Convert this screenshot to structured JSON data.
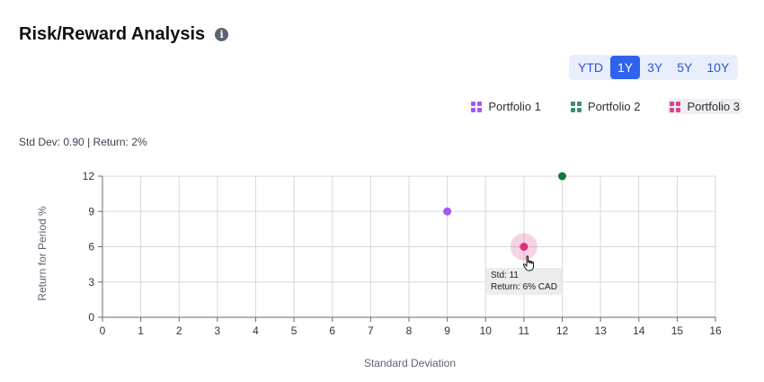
{
  "header": {
    "title": "Risk/Reward Analysis",
    "info_icon": "info-icon"
  },
  "periods": [
    {
      "label": "YTD",
      "active": false
    },
    {
      "label": "1Y",
      "active": true
    },
    {
      "label": "3Y",
      "active": false
    },
    {
      "label": "5Y",
      "active": false
    },
    {
      "label": "10Y",
      "active": false
    }
  ],
  "legend": [
    {
      "label": "Portfolio 1",
      "color": "#a855f7",
      "highlight": false
    },
    {
      "label": "Portfolio 2",
      "color": "#3d8f6b",
      "highlight": false
    },
    {
      "label": "Portfolio 3",
      "color": "#e0408a",
      "highlight": true
    }
  ],
  "stats": {
    "std_dev_label": "Std Dev: 0.90",
    "separator": "|",
    "return_label": "Return: 2%"
  },
  "tooltip": {
    "line1": "Std: 11",
    "line2": "Return: 6% CAD"
  },
  "chart_data": {
    "type": "scatter",
    "xlabel": "Standard Deviation",
    "ylabel": "Return for Period %",
    "xlim": [
      0,
      16
    ],
    "ylim": [
      0,
      12
    ],
    "xticks": [
      0,
      1,
      2,
      3,
      4,
      5,
      6,
      7,
      8,
      9,
      10,
      11,
      12,
      13,
      14,
      15,
      16
    ],
    "yticks": [
      0,
      3,
      6,
      9,
      12
    ],
    "grid": true,
    "legend_position": "top-right",
    "series": [
      {
        "name": "Portfolio 1",
        "color": "#a855f7",
        "points": [
          {
            "x": 9,
            "y": 9
          }
        ]
      },
      {
        "name": "Portfolio 2",
        "color": "#0f7a3c",
        "points": [
          {
            "x": 12,
            "y": 12
          }
        ]
      },
      {
        "name": "Portfolio 3",
        "color": "#d9317a",
        "points": [
          {
            "x": 11,
            "y": 6
          }
        ],
        "hovered": true
      }
    ]
  }
}
